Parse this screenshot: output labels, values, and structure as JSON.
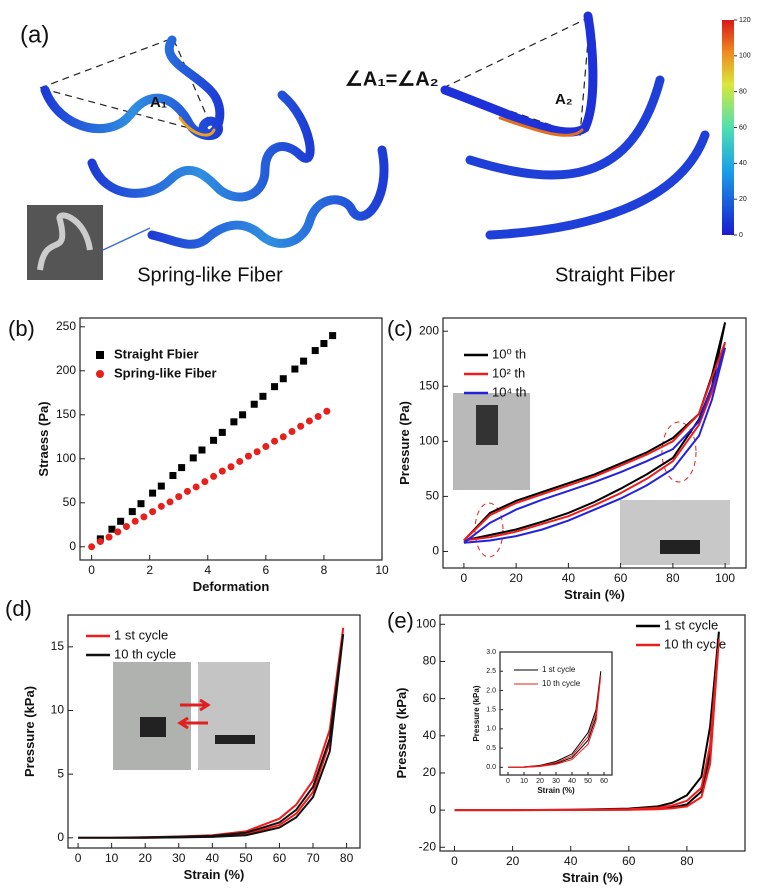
{
  "illustration": {
    "label": "(a)",
    "left_caption": "Spring-like Fiber",
    "right_caption": "Straight Fiber",
    "angle_text": "∠A₁=∠A₂",
    "angle_left": "A₁",
    "angle_right": "A₂",
    "colorbar_lim": [
      0,
      120
    ],
    "colorbar_ticks": [
      0,
      20,
      40,
      60,
      80,
      100,
      120
    ]
  },
  "chart_data": [
    {
      "type": "scatter",
      "label": "(b)",
      "x_label": "Deformation",
      "y_label": "Straess (Pa)",
      "xlim": [
        -0.4,
        10
      ],
      "xticks": [
        0,
        2,
        4,
        6,
        8,
        10
      ],
      "ylim": [
        -15,
        260
      ],
      "yticks": [
        0,
        50,
        100,
        150,
        200,
        250
      ],
      "series": [
        {
          "name": "Straight Fbier",
          "color": "#000000",
          "marker": "square",
          "x": [
            0.3,
            0.7,
            1.0,
            1.4,
            1.7,
            2.1,
            2.4,
            2.8,
            3.1,
            3.5,
            3.8,
            4.2,
            4.5,
            4.9,
            5.2,
            5.6,
            5.9,
            6.3,
            6.6,
            7.0,
            7.3,
            7.7,
            8.0,
            8.3
          ],
          "values": [
            9,
            20,
            29,
            40,
            49,
            61,
            69,
            81,
            90,
            101,
            110,
            121,
            130,
            142,
            150,
            162,
            171,
            182,
            191,
            202,
            211,
            223,
            231,
            240
          ]
        },
        {
          "name": "Spring-like Fiber",
          "color": "#e8201c",
          "marker": "circle",
          "x": [
            0,
            0.3,
            0.6,
            0.9,
            1.2,
            1.5,
            1.8,
            2.1,
            2.4,
            2.7,
            3.0,
            3.3,
            3.6,
            3.9,
            4.2,
            4.5,
            4.8,
            5.1,
            5.4,
            5.7,
            6.0,
            6.3,
            6.6,
            6.9,
            7.2,
            7.5,
            7.8,
            8.1
          ],
          "values": [
            0,
            6,
            11,
            17,
            23,
            29,
            34,
            40,
            46,
            51,
            57,
            63,
            68,
            74,
            80,
            86,
            91,
            97,
            103,
            108,
            114,
            120,
            125,
            131,
            137,
            143,
            148,
            154
          ]
        }
      ]
    },
    {
      "type": "line",
      "label": "(c)",
      "x_label": "Strain (%)",
      "y_label": "Pressure (Pa)",
      "xlim": [
        -8,
        108
      ],
      "xticks": [
        0,
        20,
        40,
        60,
        80,
        100
      ],
      "ylim": [
        -15,
        212
      ],
      "yticks": [
        0,
        50,
        100,
        150,
        200
      ],
      "series": [
        {
          "name": "10⁰ th",
          "color": "#000000",
          "x": [
            0,
            10,
            20,
            30,
            40,
            50,
            60,
            70,
            80,
            90,
            95,
            100,
            95,
            90,
            80,
            70,
            60,
            50,
            40,
            30,
            20,
            10,
            0
          ],
          "values": [
            10,
            15,
            20,
            27,
            35,
            45,
            57,
            70,
            85,
            120,
            150,
            208,
            160,
            125,
            103,
            90,
            80,
            70,
            62,
            54,
            46,
            35,
            10
          ]
        },
        {
          "name": "10² th",
          "color": "#ee1c1c",
          "x": [
            0,
            10,
            20,
            30,
            40,
            50,
            60,
            70,
            80,
            90,
            95,
            100,
            95,
            90,
            80,
            70,
            60,
            50,
            40,
            30,
            20,
            10,
            0
          ],
          "values": [
            10,
            13,
            18,
            25,
            32,
            42,
            53,
            66,
            82,
            115,
            145,
            190,
            158,
            125,
            100,
            88,
            78,
            68,
            60,
            52,
            44,
            33,
            10
          ]
        },
        {
          "name": "10⁴ th",
          "color": "#2222dd",
          "x": [
            0,
            10,
            20,
            30,
            40,
            50,
            60,
            70,
            80,
            90,
            95,
            100,
            95,
            90,
            80,
            70,
            60,
            50,
            40,
            30,
            20,
            10,
            0
          ],
          "values": [
            8,
            10,
            14,
            20,
            28,
            38,
            48,
            60,
            75,
            105,
            138,
            185,
            150,
            118,
            93,
            82,
            72,
            63,
            55,
            47,
            38,
            26,
            8
          ]
        }
      ]
    },
    {
      "type": "line",
      "label": "(d)",
      "x_label": "Strain (%)",
      "y_label": "Pressure (kPa)",
      "xlim": [
        -3,
        84
      ],
      "xticks": [
        0,
        10,
        20,
        30,
        40,
        50,
        60,
        70,
        80
      ],
      "ylim": [
        -0.8,
        17.5
      ],
      "yticks": [
        0,
        5,
        10,
        15
      ],
      "series": [
        {
          "name": "1 st cycle",
          "color": "#ee1c1c",
          "x": [
            0,
            10,
            20,
            30,
            40,
            50,
            60,
            65,
            70,
            75,
            79,
            75,
            70,
            65,
            60,
            50,
            40,
            30,
            20,
            10,
            0
          ],
          "values": [
            0,
            0,
            0.05,
            0.1,
            0.2,
            0.5,
            1.5,
            2.6,
            4.5,
            8.5,
            16.5,
            7.5,
            3.6,
            1.9,
            1.0,
            0.3,
            0.1,
            0.05,
            0,
            0,
            0
          ]
        },
        {
          "name": "10 th cycle",
          "color": "#111111",
          "x": [
            0,
            10,
            20,
            30,
            40,
            50,
            60,
            65,
            70,
            75,
            79,
            75,
            70,
            65,
            60,
            50,
            40,
            30,
            20,
            10,
            0
          ],
          "values": [
            0,
            0,
            0.03,
            0.08,
            0.15,
            0.4,
            1.2,
            2.2,
            4.0,
            7.8,
            16,
            6.8,
            3.2,
            1.6,
            0.8,
            0.2,
            0.07,
            0.03,
            0,
            0,
            0
          ]
        }
      ]
    },
    {
      "type": "line",
      "label": "(e)",
      "x_label": "Strain (%)",
      "y_label": "Pressure (kPa)",
      "xlim": [
        -5,
        100
      ],
      "xticks": [
        0,
        20,
        40,
        60,
        80
      ],
      "ylim": [
        -22,
        105
      ],
      "yticks": [
        -20,
        0,
        20,
        40,
        60,
        80,
        100
      ],
      "series": [
        {
          "name": "1 st cycle",
          "color": "#000000",
          "x": [
            0,
            20,
            40,
            60,
            70,
            75,
            80,
            85,
            88,
            91,
            88,
            85,
            80,
            75,
            70,
            60,
            40,
            20,
            0
          ],
          "values": [
            0,
            0,
            0.2,
            0.8,
            2,
            4,
            8,
            18,
            45,
            96,
            30,
            10,
            3,
            1.5,
            0.8,
            0.3,
            0.1,
            0,
            0
          ]
        },
        {
          "name": "10 th cycle",
          "color": "#ee1c1c",
          "x": [
            0,
            20,
            40,
            60,
            70,
            75,
            80,
            85,
            88,
            91,
            88,
            85,
            80,
            75,
            70,
            60,
            40,
            20,
            0
          ],
          "values": [
            0,
            0,
            0.1,
            0.5,
            1.2,
            2.5,
            5,
            12,
            35,
            92,
            25,
            7,
            2,
            1,
            0.5,
            0.2,
            0.05,
            0,
            0
          ]
        }
      ]
    },
    {
      "type": "line",
      "x_label": "Strain (%)",
      "y_label": "Pressure (kPa)",
      "xlim": [
        -5,
        65
      ],
      "xticks": [
        0,
        10,
        20,
        30,
        40,
        50,
        60
      ],
      "ylim": [
        -0.2,
        3.0
      ],
      "yticks": [
        {
          "value": 0,
          "label": "0.0"
        },
        {
          "value": 0.5,
          "label": "0.5"
        },
        {
          "value": 1,
          "label": "1.0"
        },
        {
          "value": 1.5,
          "label": "1.5"
        },
        {
          "value": 2,
          "label": "2.0"
        },
        {
          "value": 2.5,
          "label": "2.5"
        },
        {
          "value": 3,
          "label": "3.0"
        }
      ],
      "series": [
        {
          "name": "1 st cycle",
          "color": "#000000",
          "x": [
            0,
            10,
            20,
            30,
            40,
            50,
            55,
            58,
            55,
            50,
            40,
            30,
            20,
            10,
            0
          ],
          "values": [
            0,
            0.01,
            0.05,
            0.15,
            0.35,
            0.9,
            1.5,
            2.5,
            1.3,
            0.7,
            0.25,
            0.1,
            0.03,
            0,
            0
          ]
        },
        {
          "name": "10 th cycle",
          "color": "#ee1c1c",
          "x": [
            0,
            10,
            20,
            30,
            40,
            50,
            55,
            58,
            55,
            50,
            40,
            30,
            20,
            10,
            0
          ],
          "values": [
            0,
            0.01,
            0.04,
            0.12,
            0.3,
            0.8,
            1.4,
            2.4,
            1.2,
            0.6,
            0.2,
            0.08,
            0.02,
            0,
            0
          ]
        }
      ]
    }
  ]
}
